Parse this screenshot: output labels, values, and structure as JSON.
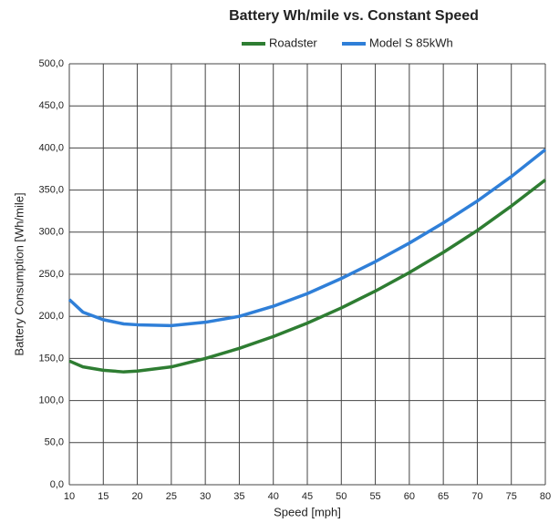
{
  "chart_data": {
    "type": "line",
    "title": "Battery Wh/mile vs. Constant Speed",
    "x_label": "Speed [mph]",
    "y_label": "Battery Consumption [Wh/mile]",
    "x": [
      10,
      12,
      15,
      18,
      20,
      25,
      30,
      35,
      40,
      45,
      50,
      55,
      60,
      65,
      70,
      75,
      80
    ],
    "series": [
      {
        "name": "Roadster",
        "color": "#2e7d32",
        "values": [
          147,
          140,
          136,
          134,
          135,
          140,
          150,
          162,
          176,
          192,
          210,
          230,
          252,
          276,
          302,
          331,
          362
        ]
      },
      {
        "name": "Model S 85kWh",
        "color": "#2f7fd8",
        "values": [
          220,
          205,
          196,
          191,
          190,
          189,
          193,
          200,
          212,
          227,
          245,
          265,
          287,
          311,
          337,
          366,
          398
        ]
      }
    ],
    "xlim": [
      10,
      80
    ],
    "xticks": [
      10,
      15,
      20,
      25,
      30,
      35,
      40,
      45,
      50,
      55,
      60,
      65,
      70,
      75,
      80
    ],
    "ylim": [
      0,
      500
    ],
    "yticks": [
      {
        "value": 0,
        "label": "0,0"
      },
      {
        "value": 50,
        "label": "50,0"
      },
      {
        "value": 100,
        "label": "100,0"
      },
      {
        "value": 150,
        "label": "150,0"
      },
      {
        "value": 200,
        "label": "200,0"
      },
      {
        "value": 250,
        "label": "250,0"
      },
      {
        "value": 300,
        "label": "300,0"
      },
      {
        "value": 350,
        "label": "350,0"
      },
      {
        "value": 400,
        "label": "400,0"
      },
      {
        "value": 450,
        "label": "450,0"
      },
      {
        "value": 500,
        "label": "500,0"
      }
    ],
    "grid": true,
    "legend": "top"
  }
}
